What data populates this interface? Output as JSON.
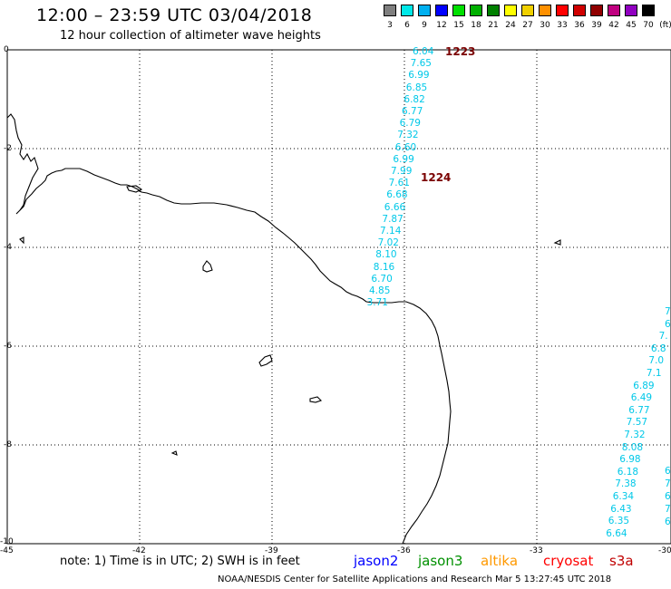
{
  "header": {
    "title": "12:00 – 23:59 UTC 03/04/2018",
    "subtitle": "12 hour collection of altimeter wave heights"
  },
  "legend": {
    "unit": "(ft)",
    "bins": [
      {
        "label": "3",
        "color": "#7f7f7f"
      },
      {
        "label": "6",
        "color": "#00e8e8"
      },
      {
        "label": "9",
        "color": "#00b0f0"
      },
      {
        "label": "12",
        "color": "#0000ff"
      },
      {
        "label": "15",
        "color": "#00e000"
      },
      {
        "label": "18",
        "color": "#00b000"
      },
      {
        "label": "21",
        "color": "#008000"
      },
      {
        "label": "24",
        "color": "#ffff00"
      },
      {
        "label": "27",
        "color": "#f0d000"
      },
      {
        "label": "30",
        "color": "#ff9000"
      },
      {
        "label": "33",
        "color": "#ff0000"
      },
      {
        "label": "36",
        "color": "#d00000"
      },
      {
        "label": "39",
        "color": "#900000"
      },
      {
        "label": "42",
        "color": "#c00080"
      },
      {
        "label": "45",
        "color": "#9000c0"
      },
      {
        "label": "70",
        "color": "#000000"
      }
    ]
  },
  "axes": {
    "y_ticks": [
      "0",
      "-2",
      "-4",
      "-6",
      "-8",
      "-10"
    ],
    "x_ticks": [
      "-45",
      "-42",
      "-39",
      "-36",
      "-33",
      "-30"
    ]
  },
  "tracks": {
    "track1": {
      "heights": [
        "6.04",
        "7.65",
        "6.99",
        "6.85",
        "6.82",
        "6.77",
        "6.79",
        "7.32",
        "6.60",
        "6.99",
        "7.99",
        "7.61",
        "6.68",
        "6.66",
        "7.87",
        "7.14",
        "7.02",
        "8.10",
        "8.16",
        "6.70",
        "4.85",
        "3.71"
      ],
      "time_labels": [
        "1223",
        "1224"
      ]
    },
    "track2": {
      "heights": [
        "7",
        "6",
        "7.",
        "6.8",
        "7.0",
        "7.1",
        "6.89",
        "6.49",
        "6.77",
        "7.57",
        "7.32",
        "8.08",
        "6.98",
        "6.18",
        "7.38",
        "6.34",
        "6.43",
        "6.35",
        "6.64"
      ]
    },
    "track2_edge": [
      "6",
      "7",
      "6",
      "7.",
      "6"
    ]
  },
  "bottom": {
    "note": "note:  1) Time is in UTC;  2) SWH is in feet",
    "satellites": [
      {
        "name": "jason2",
        "color": "#0000ff"
      },
      {
        "name": "jason3",
        "color": "#009000"
      },
      {
        "name": "altika",
        "color": "#ff9900"
      },
      {
        "name": "cryosat",
        "color": "#ff0000"
      },
      {
        "name": "s3a",
        "color": "#c00000"
      }
    ],
    "footer": "NOAA/NESDIS Center for Satellite Applications and Research    Mar  5 13:27:45 UTC 2018"
  }
}
